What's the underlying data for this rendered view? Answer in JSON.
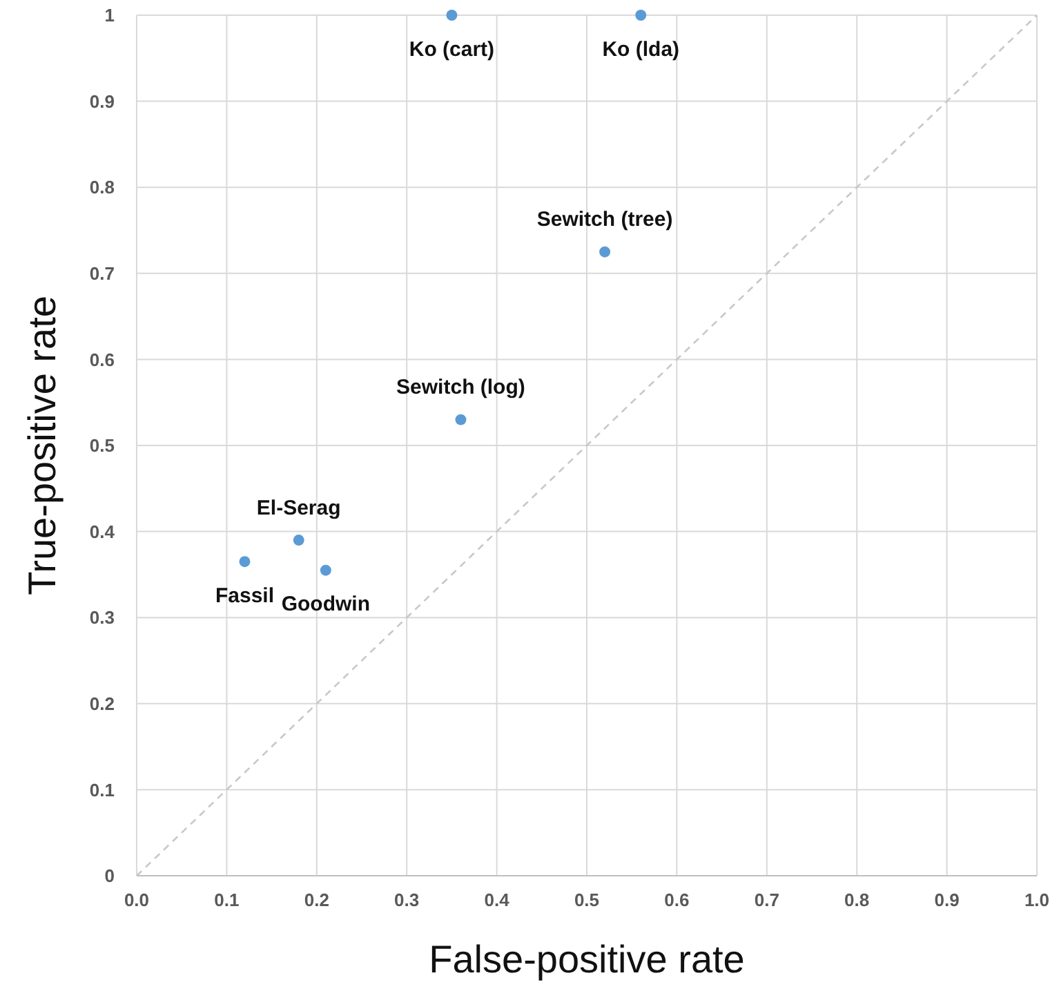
{
  "chart_data": {
    "type": "scatter",
    "xlabel": "False-positive rate",
    "ylabel": "True-positive rate",
    "xlim": [
      0,
      1
    ],
    "ylim": [
      0,
      1
    ],
    "xticks": [
      {
        "value": 0,
        "label": "0.0"
      },
      0.1,
      0.2,
      0.3,
      0.4,
      0.5,
      0.6,
      0.7,
      0.8,
      0.9,
      {
        "value": 1,
        "label": "1.0"
      }
    ],
    "yticks": [
      0,
      0.1,
      0.2,
      0.3,
      0.4,
      0.5,
      0.6,
      0.7,
      0.8,
      0.9,
      1
    ],
    "grid": true,
    "series": [
      {
        "color": "#5b9bd5",
        "marker": "circle",
        "x": [
          0.35,
          0.56,
          0.52,
          0.36,
          0.18,
          0.12,
          0.21
        ],
        "values": [
          1,
          1,
          0.725,
          0.53,
          0.39,
          0.365,
          0.355
        ]
      },
      {
        "type": "line",
        "color": "#c8c8c8",
        "line_style": "dashed",
        "x": [
          0,
          1
        ],
        "values": [
          0,
          1
        ]
      }
    ],
    "annotations": [
      {
        "text": "Ko (cart)",
        "x": 0.35,
        "y": 1
      },
      {
        "text": "Ko (lda)",
        "x": 0.56,
        "y": 1
      },
      {
        "text": "Sewitch (tree)",
        "x": 0.52,
        "y": 0.725
      },
      {
        "text": "Sewitch (log)",
        "x": 0.36,
        "y": 0.53
      },
      {
        "text": "El-Serag",
        "x": 0.18,
        "y": 0.39
      },
      {
        "text": "Fassil",
        "x": 0.12,
        "y": 0.365
      },
      {
        "text": "Goodwin",
        "x": 0.21,
        "y": 0.355
      }
    ]
  }
}
